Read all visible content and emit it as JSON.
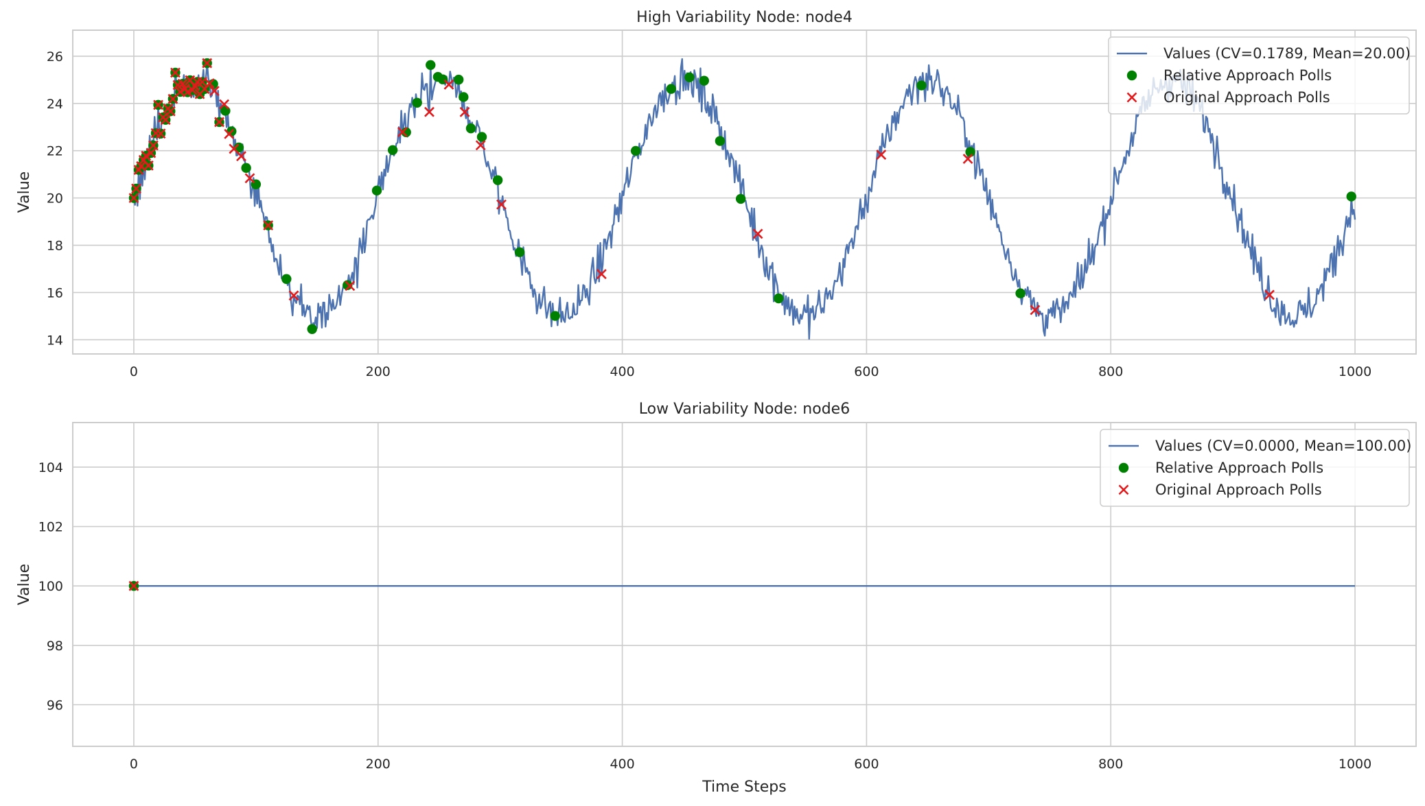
{
  "chart_data": [
    {
      "type": "line",
      "title": "High Variability Node: node4",
      "xlabel": "",
      "ylabel": "Value",
      "xlim": [
        -50,
        1050
      ],
      "ylim": [
        13.4,
        27.1
      ],
      "xticks": [
        0,
        200,
        400,
        600,
        800,
        1000
      ],
      "yticks": [
        14,
        16,
        18,
        20,
        22,
        24,
        26
      ],
      "grid": true,
      "legend_position": "top-right",
      "signal": {
        "kind": "sine",
        "n": 1001,
        "mean": 20,
        "amplitude": 5,
        "period": 200,
        "noise": 0.55
      },
      "series": [
        {
          "name": "Values (CV=0.1789, Mean=20.00)",
          "color": "#4c72b0",
          "marker": "line"
        },
        {
          "name": "Relative Approach Polls",
          "color": "#008000",
          "marker": "circle",
          "x": [
            0,
            2,
            4,
            6,
            8,
            10,
            12,
            14,
            16,
            18,
            20,
            22,
            24,
            26,
            28,
            30,
            32,
            34,
            36,
            38,
            40,
            42,
            44,
            46,
            48,
            50,
            52,
            54,
            56,
            58,
            60,
            65,
            70,
            75,
            80,
            86,
            92,
            100,
            110,
            125,
            146,
            175,
            199,
            212,
            223,
            232,
            243,
            249,
            253,
            266,
            270,
            276,
            285,
            298,
            316,
            345,
            411,
            440,
            455,
            467,
            480,
            497,
            528,
            645,
            685,
            726,
            997
          ]
        },
        {
          "name": "Original Approach Polls",
          "color": "#e31a1c",
          "marker": "x",
          "x": [
            0,
            2,
            4,
            6,
            8,
            10,
            12,
            14,
            16,
            18,
            20,
            22,
            24,
            26,
            28,
            30,
            32,
            34,
            36,
            38,
            40,
            42,
            44,
            46,
            48,
            50,
            52,
            54,
            56,
            58,
            60,
            62,
            66,
            70,
            74,
            78,
            82,
            88,
            95,
            110,
            131,
            177,
            220,
            242,
            258,
            271,
            284,
            301,
            383,
            511,
            612,
            683,
            738,
            930
          ]
        }
      ]
    },
    {
      "type": "line",
      "title": "Low Variability Node: node6",
      "xlabel": "Time Steps",
      "ylabel": "Value",
      "xlim": [
        -50,
        1050
      ],
      "ylim": [
        94.6,
        105.5
      ],
      "xticks": [
        0,
        200,
        400,
        600,
        800,
        1000
      ],
      "yticks": [
        96,
        98,
        100,
        102,
        104
      ],
      "grid": true,
      "legend_position": "top-right",
      "signal": {
        "kind": "constant",
        "n": 1001,
        "mean": 100
      },
      "series": [
        {
          "name": "Values (CV=0.0000, Mean=100.00)",
          "color": "#4c72b0",
          "marker": "line"
        },
        {
          "name": "Relative Approach Polls",
          "color": "#008000",
          "marker": "circle",
          "x": [
            0
          ],
          "y": [
            100
          ]
        },
        {
          "name": "Original Approach Polls",
          "color": "#e31a1c",
          "marker": "x",
          "x": [
            0
          ],
          "y": [
            100
          ]
        }
      ]
    }
  ]
}
